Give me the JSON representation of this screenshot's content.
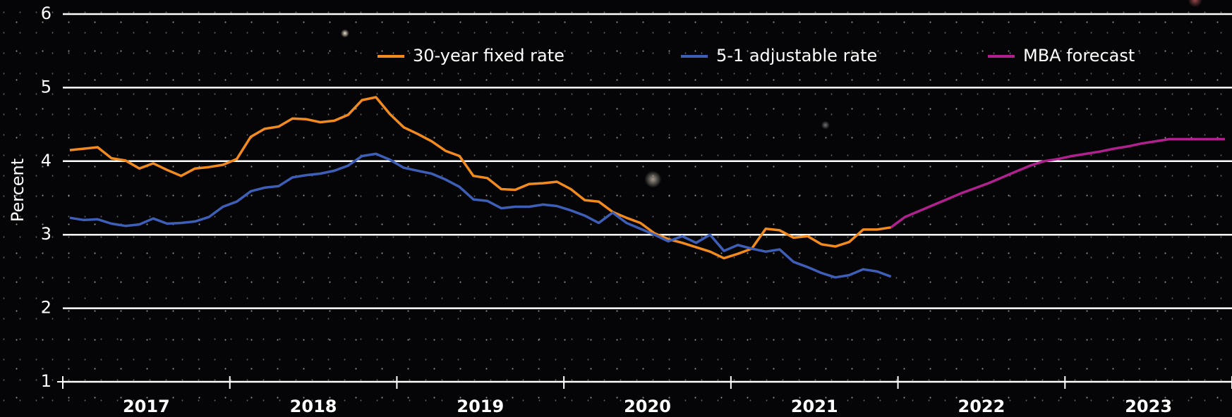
{
  "chart_data": {
    "type": "line",
    "y_label": "Percent",
    "categories": [
      null,
      null,
      null,
      null,
      null,
      null,
      "2017",
      null,
      null,
      null,
      null,
      null,
      null,
      null,
      null,
      null,
      null,
      null,
      "2018",
      null,
      null,
      null,
      null,
      null,
      null,
      null,
      null,
      null,
      null,
      null,
      "2019",
      null,
      null,
      null,
      null,
      null,
      null,
      null,
      null,
      null,
      null,
      null,
      "2020",
      null,
      null,
      null,
      null,
      null,
      null,
      null,
      null,
      null,
      null,
      null,
      "2021",
      null,
      null,
      null,
      null,
      null,
      null,
      null,
      null,
      null,
      null,
      null,
      "2022",
      null,
      null,
      null,
      null,
      null,
      null,
      null,
      null,
      null,
      null,
      null,
      "2023",
      null,
      null,
      null,
      null,
      null
    ],
    "series": [
      {
        "name": "30-year fixed rate",
        "color": "#f28a1e",
        "values": [
          4.15,
          4.17,
          4.19,
          4.04,
          4.01,
          3.9,
          3.97,
          3.88,
          3.8,
          3.9,
          3.92,
          3.95,
          4.03,
          4.33,
          4.44,
          4.47,
          4.58,
          4.57,
          4.53,
          4.55,
          4.63,
          4.83,
          4.87,
          4.64,
          4.46,
          4.37,
          4.27,
          4.14,
          4.07,
          3.8,
          3.77,
          3.62,
          3.61,
          3.69,
          3.7,
          3.72,
          3.62,
          3.47,
          3.45,
          3.31,
          3.23,
          3.16,
          3.02,
          2.94,
          2.89,
          2.83,
          2.77,
          2.68,
          2.74,
          2.81,
          3.08,
          3.06,
          2.96,
          2.98,
          2.87,
          2.84,
          2.9,
          3.07,
          3.07,
          3.1,
          null,
          null,
          null,
          null,
          null,
          null,
          null,
          null,
          null,
          null,
          null,
          null,
          null,
          null,
          null,
          null,
          null,
          null,
          null,
          null,
          null,
          null,
          null,
          null
        ]
      },
      {
        "name": "5-1 adjustable rate",
        "color": "#3d5fb8",
        "values": [
          3.23,
          3.2,
          3.21,
          3.15,
          3.12,
          3.14,
          3.22,
          3.15,
          3.16,
          3.18,
          3.24,
          3.38,
          3.45,
          3.59,
          3.64,
          3.66,
          3.78,
          3.81,
          3.83,
          3.87,
          3.94,
          4.07,
          4.1,
          4.02,
          3.91,
          3.87,
          3.83,
          3.75,
          3.65,
          3.48,
          3.46,
          3.36,
          3.38,
          3.38,
          3.41,
          3.39,
          3.33,
          3.26,
          3.16,
          3.3,
          3.16,
          3.08,
          3.0,
          2.91,
          2.98,
          2.89,
          3.0,
          2.78,
          2.86,
          2.81,
          2.77,
          2.8,
          2.63,
          2.56,
          2.48,
          2.42,
          2.45,
          2.53,
          2.5,
          2.43,
          null,
          null,
          null,
          null,
          null,
          null,
          null,
          null,
          null,
          null,
          null,
          null,
          null,
          null,
          null,
          null,
          null,
          null,
          null,
          null,
          null,
          null,
          null,
          null
        ]
      },
      {
        "name": "MBA forecast",
        "color": "#b0208f",
        "values": [
          null,
          null,
          null,
          null,
          null,
          null,
          null,
          null,
          null,
          null,
          null,
          null,
          null,
          null,
          null,
          null,
          null,
          null,
          null,
          null,
          null,
          null,
          null,
          null,
          null,
          null,
          null,
          null,
          null,
          null,
          null,
          null,
          null,
          null,
          null,
          null,
          null,
          null,
          null,
          null,
          null,
          null,
          null,
          null,
          null,
          null,
          null,
          null,
          null,
          null,
          null,
          null,
          null,
          null,
          null,
          null,
          null,
          null,
          null,
          3.1,
          3.24,
          3.32,
          3.4,
          3.48,
          3.56,
          3.63,
          3.7,
          3.78,
          3.86,
          3.94,
          4.0,
          4.03,
          4.07,
          4.1,
          4.13,
          4.17,
          4.2,
          4.24,
          4.27,
          4.3,
          4.3,
          4.3,
          4.3,
          4.3
        ]
      }
    ],
    "ylim": [
      1,
      6
    ],
    "yticks": [
      1,
      2,
      3,
      4,
      5,
      6
    ],
    "grid": true
  }
}
